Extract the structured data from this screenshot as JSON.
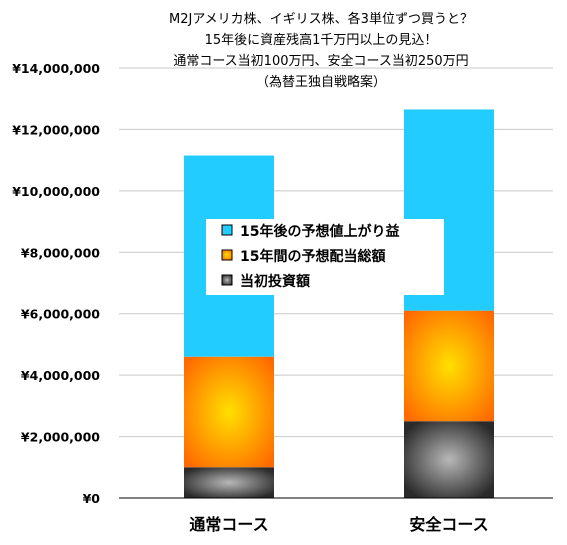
{
  "chart_data": {
    "type": "bar",
    "stacked": true,
    "title_lines": [
      "M2Jアメリカ株、イギリス株、各3単位ずつ買うと？",
      "15年後に資産残高1千万円以上の見込！",
      "通常コース当初100万円、安全コース当初250万円",
      "（為替王独自戦略案）"
    ],
    "categories": [
      "通常コース",
      "安全コース"
    ],
    "series": [
      {
        "name": "当初投資額",
        "values": [
          1000000,
          2500000
        ]
      },
      {
        "name": "15年間の予想配当総額",
        "values": [
          3600000,
          3600000
        ]
      },
      {
        "name": "15年後の予想値上がり益",
        "values": [
          6550000,
          6550000
        ]
      }
    ],
    "legend_order": [
      "15年後の予想値上がり益",
      "15年間の予想配当総額",
      "当初投資額"
    ],
    "ylim": [
      0,
      14000000
    ],
    "yticks": [
      "¥0",
      "¥2,000,000",
      "¥4,000,000",
      "¥6,000,000",
      "¥8,000,000",
      "¥10,000,000",
      "¥12,000,000",
      "¥14,000,000"
    ],
    "grid": true,
    "legend_position": "center",
    "colors": {
      "当初投資額": {
        "edge": "#2a2a2a",
        "center": "#b8b8b8"
      },
      "15年間の予想配当総額": {
        "edge": "#ff6a00",
        "center": "#ffe000"
      },
      "15年後の予想値上がり益": {
        "edge": "#22ccff",
        "center": "#22ccff"
      }
    }
  }
}
